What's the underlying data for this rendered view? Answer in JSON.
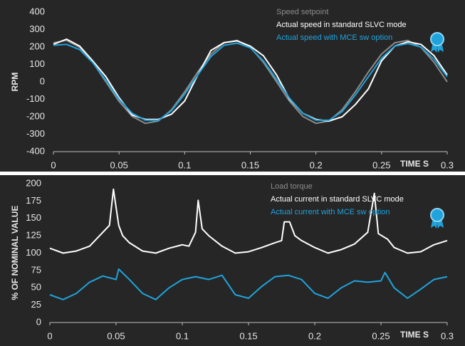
{
  "chart_data": [
    {
      "type": "line",
      "ylabel": "RPM",
      "xlabel": "TIME S",
      "xlim": [
        0,
        0.3
      ],
      "xticks": [
        0,
        0.05,
        0.1,
        0.15,
        0.2,
        0.25,
        0.3
      ],
      "ylim": [
        -400,
        400
      ],
      "yticks": [
        -400,
        -300,
        -200,
        -100,
        0,
        100,
        200,
        300,
        400
      ],
      "grid": false,
      "series": [
        {
          "name": "Speed setpoint",
          "color": "#8c8c8c",
          "x": [
            0,
            0.01,
            0.02,
            0.03,
            0.04,
            0.05,
            0.06,
            0.07,
            0.08,
            0.09,
            0.1,
            0.11,
            0.12,
            0.13,
            0.14,
            0.15,
            0.16,
            0.17,
            0.18,
            0.19,
            0.2,
            0.21,
            0.22,
            0.23,
            0.24,
            0.25,
            0.26,
            0.27,
            0.28,
            0.29,
            0.3
          ],
          "values": [
            224,
            238,
            198,
            112,
            0,
            -112,
            -198,
            -238,
            -224,
            -159,
            -57,
            57,
            159,
            224,
            238,
            198,
            112,
            0,
            -112,
            -198,
            -238,
            -224,
            -159,
            -57,
            57,
            159,
            224,
            238,
            198,
            112,
            0
          ]
        },
        {
          "name": "Actual speed in standard SLVC mode",
          "color": "#ffffff",
          "x": [
            0,
            0.01,
            0.02,
            0.03,
            0.04,
            0.05,
            0.06,
            0.07,
            0.08,
            0.09,
            0.1,
            0.11,
            0.12,
            0.13,
            0.14,
            0.15,
            0.16,
            0.17,
            0.18,
            0.19,
            0.2,
            0.21,
            0.22,
            0.23,
            0.24,
            0.25,
            0.26,
            0.27,
            0.28,
            0.29,
            0.3
          ],
          "values": [
            215,
            245,
            205,
            120,
            30,
            -90,
            -190,
            -215,
            -215,
            -185,
            -110,
            40,
            180,
            225,
            235,
            205,
            150,
            40,
            -100,
            -180,
            -215,
            -225,
            -200,
            -130,
            -40,
            120,
            205,
            230,
            215,
            150,
            40
          ]
        },
        {
          "name": "Actual speed with MCE sw option",
          "color": "#1fa3dc",
          "x": [
            0,
            0.01,
            0.02,
            0.03,
            0.04,
            0.05,
            0.06,
            0.07,
            0.08,
            0.09,
            0.1,
            0.11,
            0.12,
            0.13,
            0.14,
            0.15,
            0.16,
            0.17,
            0.18,
            0.19,
            0.2,
            0.21,
            0.22,
            0.23,
            0.24,
            0.25,
            0.26,
            0.27,
            0.28,
            0.29,
            0.3
          ],
          "values": [
            210,
            215,
            185,
            110,
            10,
            -100,
            -180,
            -220,
            -220,
            -165,
            -70,
            40,
            145,
            210,
            222,
            195,
            120,
            15,
            -95,
            -180,
            -220,
            -220,
            -170,
            -75,
            30,
            135,
            205,
            220,
            200,
            130,
            30
          ]
        }
      ]
    },
    {
      "type": "line",
      "ylabel": "% OF NOMINAL VALUE",
      "xlabel": "TIME S",
      "xlim": [
        0,
        0.3
      ],
      "xticks": [
        0,
        0.05,
        0.1,
        0.15,
        0.2,
        0.25,
        0.3
      ],
      "ylim": [
        0,
        200
      ],
      "yticks": [
        0,
        25,
        50,
        75,
        100,
        125,
        150,
        175,
        200
      ],
      "grid": false,
      "annotations": [
        "Load torque"
      ],
      "series": [
        {
          "name": "Actual current in standard SLVC mode",
          "color": "#ffffff",
          "x": [
            0,
            0.01,
            0.02,
            0.03,
            0.04,
            0.045,
            0.048,
            0.052,
            0.055,
            0.06,
            0.07,
            0.08,
            0.09,
            0.1,
            0.105,
            0.11,
            0.112,
            0.115,
            0.12,
            0.13,
            0.14,
            0.15,
            0.16,
            0.17,
            0.175,
            0.177,
            0.181,
            0.185,
            0.19,
            0.2,
            0.21,
            0.22,
            0.23,
            0.24,
            0.245,
            0.248,
            0.255,
            0.26,
            0.27,
            0.28,
            0.29,
            0.3
          ],
          "values": [
            107,
            100,
            103,
            110,
            130,
            140,
            192,
            140,
            125,
            115,
            103,
            100,
            107,
            112,
            110,
            130,
            176,
            135,
            125,
            110,
            100,
            102,
            108,
            115,
            118,
            145,
            145,
            125,
            118,
            108,
            100,
            105,
            113,
            130,
            186,
            128,
            120,
            108,
            100,
            102,
            112,
            118
          ]
        },
        {
          "name": "Actual current with MCE sw option",
          "color": "#1fa3dc",
          "x": [
            0,
            0.01,
            0.02,
            0.03,
            0.04,
            0.05,
            0.052,
            0.06,
            0.07,
            0.08,
            0.09,
            0.1,
            0.11,
            0.12,
            0.13,
            0.14,
            0.15,
            0.16,
            0.17,
            0.18,
            0.19,
            0.2,
            0.21,
            0.22,
            0.23,
            0.24,
            0.25,
            0.253,
            0.26,
            0.27,
            0.28,
            0.29,
            0.3
          ],
          "values": [
            40,
            33,
            42,
            58,
            67,
            62,
            77,
            62,
            42,
            33,
            50,
            62,
            66,
            62,
            68,
            40,
            35,
            52,
            66,
            68,
            62,
            42,
            35,
            50,
            60,
            58,
            60,
            72,
            50,
            35,
            48,
            62,
            66
          ]
        }
      ]
    }
  ]
}
